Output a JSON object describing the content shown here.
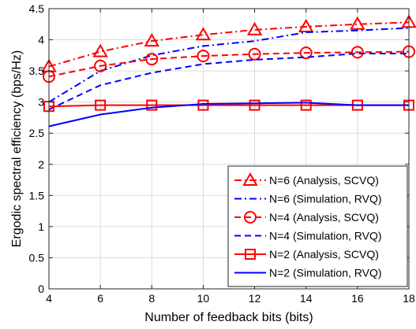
{
  "chart_data": {
    "type": "line",
    "xlabel": "Number of feedback bits (bits)",
    "ylabel": "Ergodic spectral efficiency (bps/Hz)",
    "xlim": [
      4,
      18
    ],
    "ylim": [
      0,
      4.5
    ],
    "xticks": [
      4,
      6,
      8,
      10,
      12,
      14,
      16,
      18
    ],
    "yticks": [
      0,
      0.5,
      1,
      1.5,
      2,
      2.5,
      3,
      3.5,
      4,
      4.5
    ],
    "grid": true,
    "legend_position": "bottom-right",
    "series": [
      {
        "name": "N=6 (Analysis, SCVQ)",
        "color": "#ff0000",
        "line_style": "dashdot",
        "marker": "triangle",
        "x": [
          4,
          6,
          8,
          10,
          12,
          14,
          16,
          18
        ],
        "y": [
          3.57,
          3.81,
          3.98,
          4.08,
          4.16,
          4.21,
          4.25,
          4.28
        ]
      },
      {
        "name": "N=6 (Simulation, RVQ)",
        "color": "#0000ff",
        "line_style": "dashdot",
        "marker": "none",
        "x": [
          4,
          6,
          8,
          10,
          12,
          14,
          16,
          18
        ],
        "y": [
          3.0,
          3.5,
          3.75,
          3.9,
          3.98,
          4.12,
          4.15,
          4.19
        ]
      },
      {
        "name": "N=4 (Analysis, SCVQ)",
        "color": "#ff0000",
        "line_style": "dashed",
        "marker": "circle",
        "x": [
          4,
          6,
          8,
          10,
          12,
          14,
          16,
          18
        ],
        "y": [
          3.41,
          3.58,
          3.69,
          3.74,
          3.77,
          3.79,
          3.8,
          3.81
        ]
      },
      {
        "name": "N=4 (Simulation, RVQ)",
        "color": "#0000ff",
        "line_style": "dashed",
        "marker": "none",
        "x": [
          4,
          6,
          8,
          10,
          12,
          14,
          16,
          18
        ],
        "y": [
          2.88,
          3.27,
          3.47,
          3.61,
          3.68,
          3.72,
          3.78,
          3.78
        ]
      },
      {
        "name": "N=2 (Analysis, SCVQ)",
        "color": "#ff0000",
        "line_style": "solid",
        "marker": "square",
        "x": [
          4,
          6,
          8,
          10,
          12,
          14,
          16,
          18
        ],
        "y": [
          2.93,
          2.95,
          2.95,
          2.95,
          2.95,
          2.95,
          2.95,
          2.95
        ]
      },
      {
        "name": "N=2 (Simulation, RVQ)",
        "color": "#0000ff",
        "line_style": "solid",
        "marker": "none",
        "x": [
          4,
          6,
          8,
          10,
          12,
          14,
          16,
          18
        ],
        "y": [
          2.61,
          2.8,
          2.91,
          2.97,
          2.98,
          2.99,
          2.95,
          2.95
        ]
      }
    ]
  }
}
